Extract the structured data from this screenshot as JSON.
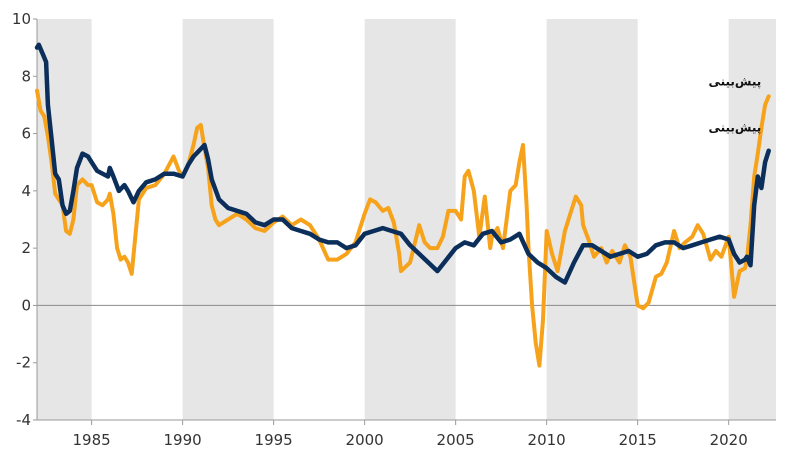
{
  "chart_data": {
    "type": "line",
    "title": "",
    "xlabel": "",
    "ylabel": "",
    "xlim": [
      1982,
      2022.6
    ],
    "ylim": [
      -4,
      10
    ],
    "x_ticks": [
      1985,
      1990,
      1995,
      2000,
      2005,
      2010,
      2015,
      2020
    ],
    "y_ticks": [
      10,
      8,
      6,
      4,
      2,
      0,
      -2,
      -4
    ],
    "shaded_bands": [
      [
        1982,
        1985
      ],
      [
        1990,
        1995
      ],
      [
        2000,
        2005
      ],
      [
        2010,
        2015
      ],
      [
        2020,
        2022.6
      ]
    ],
    "grid": false,
    "legend": "none",
    "annotations": [
      {
        "text": "پیش‌بینی",
        "x": 2021.9,
        "y": 7.6,
        "series": "orange"
      },
      {
        "text": "پیش‌بینی",
        "x": 2021.9,
        "y": 6.0,
        "series": "navy"
      }
    ],
    "series": [
      {
        "color": "#F7A21B",
        "points": [
          [
            1982.0,
            7.5
          ],
          [
            1982.2,
            6.8
          ],
          [
            1982.4,
            6.6
          ],
          [
            1982.6,
            5.9
          ],
          [
            1982.8,
            5.0
          ],
          [
            1983.0,
            3.9
          ],
          [
            1983.2,
            3.7
          ],
          [
            1983.4,
            3.5
          ],
          [
            1983.6,
            2.6
          ],
          [
            1983.8,
            2.5
          ],
          [
            1984.0,
            3.0
          ],
          [
            1984.2,
            4.2
          ],
          [
            1984.5,
            4.4
          ],
          [
            1984.8,
            4.2
          ],
          [
            1985.0,
            4.2
          ],
          [
            1985.3,
            3.6
          ],
          [
            1985.6,
            3.5
          ],
          [
            1985.9,
            3.7
          ],
          [
            1986.0,
            3.9
          ],
          [
            1986.2,
            3.2
          ],
          [
            1986.4,
            2.0
          ],
          [
            1986.6,
            1.6
          ],
          [
            1986.8,
            1.7
          ],
          [
            1987.0,
            1.5
          ],
          [
            1987.2,
            1.1
          ],
          [
            1987.4,
            2.4
          ],
          [
            1987.6,
            3.7
          ],
          [
            1988.0,
            4.1
          ],
          [
            1988.5,
            4.2
          ],
          [
            1989.0,
            4.6
          ],
          [
            1989.5,
            5.2
          ],
          [
            1989.8,
            4.7
          ],
          [
            1990.0,
            4.5
          ],
          [
            1990.3,
            4.9
          ],
          [
            1990.6,
            5.6
          ],
          [
            1990.8,
            6.2
          ],
          [
            1991.0,
            6.3
          ],
          [
            1991.2,
            5.5
          ],
          [
            1991.4,
            4.8
          ],
          [
            1991.6,
            3.5
          ],
          [
            1991.8,
            3.0
          ],
          [
            1992.0,
            2.8
          ],
          [
            1992.5,
            3.0
          ],
          [
            1993.0,
            3.2
          ],
          [
            1993.5,
            3.0
          ],
          [
            1994.0,
            2.7
          ],
          [
            1994.5,
            2.6
          ],
          [
            1995.0,
            2.9
          ],
          [
            1995.5,
            3.1
          ],
          [
            1996.0,
            2.8
          ],
          [
            1996.5,
            3.0
          ],
          [
            1997.0,
            2.8
          ],
          [
            1997.5,
            2.3
          ],
          [
            1998.0,
            1.6
          ],
          [
            1998.5,
            1.6
          ],
          [
            1999.0,
            1.8
          ],
          [
            1999.5,
            2.2
          ],
          [
            2000.0,
            3.2
          ],
          [
            2000.3,
            3.7
          ],
          [
            2000.6,
            3.6
          ],
          [
            2001.0,
            3.3
          ],
          [
            2001.3,
            3.4
          ],
          [
            2001.6,
            2.9
          ],
          [
            2001.9,
            1.8
          ],
          [
            2002.0,
            1.2
          ],
          [
            2002.5,
            1.5
          ],
          [
            2003.0,
            2.8
          ],
          [
            2003.3,
            2.2
          ],
          [
            2003.6,
            2.0
          ],
          [
            2004.0,
            2.0
          ],
          [
            2004.3,
            2.4
          ],
          [
            2004.6,
            3.3
          ],
          [
            2005.0,
            3.3
          ],
          [
            2005.3,
            3.0
          ],
          [
            2005.5,
            4.5
          ],
          [
            2005.7,
            4.7
          ],
          [
            2006.0,
            4.0
          ],
          [
            2006.3,
            2.4
          ],
          [
            2006.6,
            3.8
          ],
          [
            2006.9,
            2.0
          ],
          [
            2007.0,
            2.4
          ],
          [
            2007.3,
            2.7
          ],
          [
            2007.6,
            2.0
          ],
          [
            2008.0,
            4.0
          ],
          [
            2008.3,
            4.2
          ],
          [
            2008.5,
            5.0
          ],
          [
            2008.7,
            5.6
          ],
          [
            2008.9,
            3.5
          ],
          [
            2009.0,
            2.0
          ],
          [
            2009.2,
            0.0
          ],
          [
            2009.4,
            -1.3
          ],
          [
            2009.6,
            -2.1
          ],
          [
            2009.8,
            -0.5
          ],
          [
            2010.0,
            2.6
          ],
          [
            2010.3,
            1.8
          ],
          [
            2010.6,
            1.2
          ],
          [
            2011.0,
            2.6
          ],
          [
            2011.3,
            3.2
          ],
          [
            2011.6,
            3.8
          ],
          [
            2011.9,
            3.5
          ],
          [
            2012.0,
            2.8
          ],
          [
            2012.3,
            2.3
          ],
          [
            2012.6,
            1.7
          ],
          [
            2013.0,
            2.0
          ],
          [
            2013.3,
            1.5
          ],
          [
            2013.6,
            1.9
          ],
          [
            2014.0,
            1.5
          ],
          [
            2014.3,
            2.1
          ],
          [
            2014.6,
            1.7
          ],
          [
            2015.0,
            0.0
          ],
          [
            2015.3,
            -0.1
          ],
          [
            2015.6,
            0.1
          ],
          [
            2016.0,
            1.0
          ],
          [
            2016.3,
            1.1
          ],
          [
            2016.6,
            1.5
          ],
          [
            2017.0,
            2.6
          ],
          [
            2017.3,
            2.0
          ],
          [
            2017.6,
            2.2
          ],
          [
            2018.0,
            2.4
          ],
          [
            2018.3,
            2.8
          ],
          [
            2018.6,
            2.5
          ],
          [
            2019.0,
            1.6
          ],
          [
            2019.3,
            1.9
          ],
          [
            2019.6,
            1.7
          ],
          [
            2020.0,
            2.4
          ],
          [
            2020.3,
            0.3
          ],
          [
            2020.6,
            1.2
          ],
          [
            2020.9,
            1.3
          ],
          [
            2021.0,
            1.6
          ],
          [
            2021.2,
            2.8
          ],
          [
            2021.4,
            4.5
          ],
          [
            2021.6,
            5.3
          ],
          [
            2021.8,
            6.2
          ],
          [
            2022.0,
            7.0
          ],
          [
            2022.2,
            7.3
          ]
        ]
      },
      {
        "color": "#0B2F5A",
        "points": [
          [
            1982.0,
            9.0
          ],
          [
            1982.1,
            9.1
          ],
          [
            1982.3,
            8.8
          ],
          [
            1982.5,
            8.5
          ],
          [
            1982.6,
            7.0
          ],
          [
            1982.8,
            5.8
          ],
          [
            1983.0,
            4.6
          ],
          [
            1983.2,
            4.4
          ],
          [
            1983.4,
            3.5
          ],
          [
            1983.6,
            3.2
          ],
          [
            1983.8,
            3.3
          ],
          [
            1984.0,
            4.0
          ],
          [
            1984.2,
            4.8
          ],
          [
            1984.5,
            5.3
          ],
          [
            1984.8,
            5.2
          ],
          [
            1985.0,
            5.0
          ],
          [
            1985.3,
            4.7
          ],
          [
            1985.6,
            4.6
          ],
          [
            1985.9,
            4.5
          ],
          [
            1986.0,
            4.8
          ],
          [
            1986.2,
            4.5
          ],
          [
            1986.5,
            4.0
          ],
          [
            1986.8,
            4.2
          ],
          [
            1987.0,
            4.0
          ],
          [
            1987.3,
            3.6
          ],
          [
            1987.6,
            4.0
          ],
          [
            1988.0,
            4.3
          ],
          [
            1988.5,
            4.4
          ],
          [
            1989.0,
            4.6
          ],
          [
            1989.5,
            4.6
          ],
          [
            1990.0,
            4.5
          ],
          [
            1990.3,
            4.9
          ],
          [
            1990.6,
            5.2
          ],
          [
            1990.9,
            5.4
          ],
          [
            1991.2,
            5.6
          ],
          [
            1991.4,
            5.1
          ],
          [
            1991.6,
            4.4
          ],
          [
            1992.0,
            3.7
          ],
          [
            1992.5,
            3.4
          ],
          [
            1993.0,
            3.3
          ],
          [
            1993.5,
            3.2
          ],
          [
            1994.0,
            2.9
          ],
          [
            1994.5,
            2.8
          ],
          [
            1995.0,
            3.0
          ],
          [
            1995.5,
            3.0
          ],
          [
            1996.0,
            2.7
          ],
          [
            1996.5,
            2.6
          ],
          [
            1997.0,
            2.5
          ],
          [
            1997.5,
            2.3
          ],
          [
            1998.0,
            2.2
          ],
          [
            1998.5,
            2.2
          ],
          [
            1999.0,
            2.0
          ],
          [
            1999.5,
            2.1
          ],
          [
            2000.0,
            2.5
          ],
          [
            2000.5,
            2.6
          ],
          [
            2001.0,
            2.7
          ],
          [
            2001.5,
            2.6
          ],
          [
            2002.0,
            2.5
          ],
          [
            2002.5,
            2.1
          ],
          [
            2003.0,
            1.8
          ],
          [
            2003.5,
            1.5
          ],
          [
            2004.0,
            1.2
          ],
          [
            2004.5,
            1.6
          ],
          [
            2005.0,
            2.0
          ],
          [
            2005.5,
            2.2
          ],
          [
            2006.0,
            2.1
          ],
          [
            2006.5,
            2.5
          ],
          [
            2007.0,
            2.6
          ],
          [
            2007.5,
            2.2
          ],
          [
            2008.0,
            2.3
          ],
          [
            2008.5,
            2.5
          ],
          [
            2009.0,
            1.8
          ],
          [
            2009.5,
            1.5
          ],
          [
            2010.0,
            1.3
          ],
          [
            2010.5,
            1.0
          ],
          [
            2011.0,
            0.8
          ],
          [
            2011.5,
            1.5
          ],
          [
            2012.0,
            2.1
          ],
          [
            2012.5,
            2.1
          ],
          [
            2013.0,
            1.9
          ],
          [
            2013.5,
            1.7
          ],
          [
            2014.0,
            1.8
          ],
          [
            2014.5,
            1.9
          ],
          [
            2015.0,
            1.7
          ],
          [
            2015.5,
            1.8
          ],
          [
            2016.0,
            2.1
          ],
          [
            2016.5,
            2.2
          ],
          [
            2017.0,
            2.2
          ],
          [
            2017.5,
            2.0
          ],
          [
            2018.0,
            2.1
          ],
          [
            2018.5,
            2.2
          ],
          [
            2019.0,
            2.3
          ],
          [
            2019.5,
            2.4
          ],
          [
            2020.0,
            2.3
          ],
          [
            2020.3,
            1.8
          ],
          [
            2020.6,
            1.5
          ],
          [
            2020.9,
            1.6
          ],
          [
            2021.0,
            1.7
          ],
          [
            2021.2,
            1.4
          ],
          [
            2021.4,
            3.5
          ],
          [
            2021.6,
            4.5
          ],
          [
            2021.8,
            4.1
          ],
          [
            2022.0,
            5.0
          ],
          [
            2022.2,
            5.4
          ]
        ]
      }
    ]
  }
}
